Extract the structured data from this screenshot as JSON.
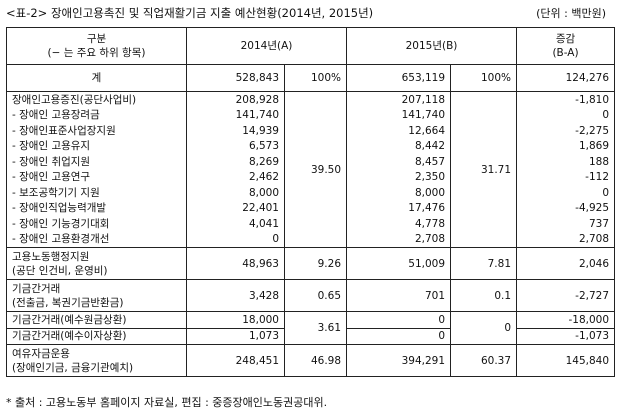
{
  "title": "<표-2> 장애인고용촉진 및 직업재활기금 지출 예산현황(2014년, 2015년)",
  "unit": "(단위 : 백만원)",
  "header": {
    "category": [
      "구분",
      "(− 는 주요 하위 항목)"
    ],
    "y2014": "2014년(A)",
    "y2015": "2015년(B)",
    "change": [
      "증감",
      "(B-A)"
    ]
  },
  "total": {
    "label": "계",
    "y2014": "528,843",
    "share2014": "100%",
    "y2015": "653,119",
    "share2015": "100%",
    "change": "124,276"
  },
  "groups": [
    {
      "share2014": "39.50",
      "share2015": "31.71",
      "rows": [
        {
          "label": [
            "장애인고용증진(공단사업비)"
          ],
          "y2014": "208,928",
          "y2015": "207,118",
          "change": "-1,810"
        },
        {
          "label": [
            "- 장애인 고용장려금"
          ],
          "y2014": "141,740",
          "y2015": "141,740",
          "change": "0"
        },
        {
          "label": [
            "- 장애인표준사업장지원"
          ],
          "y2014": "14,939",
          "y2015": "12,664",
          "change": "-2,275"
        },
        {
          "label": [
            "- 장애인 고용유지"
          ],
          "y2014": "6,573",
          "y2015": "8,442",
          "change": "1,869"
        },
        {
          "label": [
            "- 장애인 취업지원"
          ],
          "y2014": "8,269",
          "y2015": "8,457",
          "change": "188"
        },
        {
          "label": [
            "- 장애인 고용연구"
          ],
          "y2014": "2,462",
          "y2015": "2,350",
          "change": "-112"
        },
        {
          "label": [
            "- 보조공학기기 지원"
          ],
          "y2014": "8,000",
          "y2015": "8,000",
          "change": "0"
        },
        {
          "label": [
            "- 장애인직업능력개발"
          ],
          "y2014": "22,401",
          "y2015": "17,476",
          "change": "-4,925"
        },
        {
          "label": [
            "- 장애인 기능경기대회"
          ],
          "y2014": "4,041",
          "y2015": "4,778",
          "change": "737"
        },
        {
          "label": [
            "- 장애인 고용환경개선"
          ],
          "y2014": "0",
          "y2015": "2,708",
          "change": "2,708"
        }
      ]
    },
    {
      "share2014": "9.26",
      "share2015": "7.81",
      "rows": [
        {
          "label": [
            "고용노동행정지원",
            "(공단 인건비, 운영비)"
          ],
          "y2014": "48,963",
          "y2015": "51,009",
          "change": "2,046"
        }
      ]
    },
    {
      "share2014": "0.65",
      "share2015": "0.1",
      "rows": [
        {
          "label": [
            "기금간거래",
            "(전출금, 복권기금반환금)"
          ],
          "y2014": "3,428",
          "y2015": "701",
          "change": "-2,727"
        }
      ]
    },
    {
      "share2014": "3.61",
      "share2015": "0",
      "rows": [
        {
          "label": [
            "기금간거래(예수원금상환)"
          ],
          "y2014": "18,000",
          "y2015": "0",
          "change": "-18,000"
        },
        {
          "label": [
            "기금간거래(예수이자상환)"
          ],
          "y2014": "1,073",
          "y2015": "0",
          "change": "-1,073"
        }
      ]
    },
    {
      "share2014": "46.98",
      "share2015": "60.37",
      "rows": [
        {
          "label": [
            "여유자금운용",
            "(장애인기금, 금융기관예치)"
          ],
          "y2014": "248,451",
          "y2015": "394,291",
          "change": "145,840"
        }
      ]
    }
  ],
  "footnote": "* 출처 : 고용노동부 홈페이지 자료실, 편집 : 중증장애인노동권공대위."
}
